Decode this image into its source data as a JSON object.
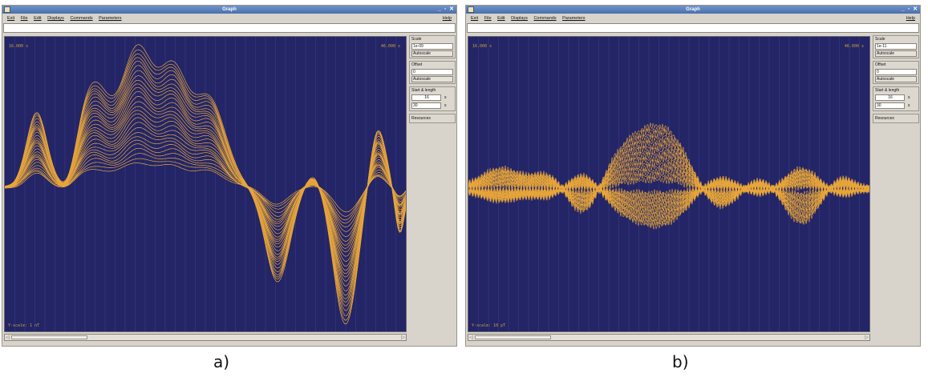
{
  "windows": [
    {
      "title": "Graph",
      "menu": [
        "Exit",
        "File",
        "Edit",
        "Displays",
        "Commands",
        "Parameters"
      ],
      "help": "Help",
      "plot": {
        "time_left": "16.000 s",
        "time_right": "46.000 s",
        "yscale": "Y-scale: 1 nT",
        "background": "#232566",
        "trace_color": "#e8a63a"
      },
      "panel": {
        "scale_label": "Scale",
        "scale_value": "1e-09",
        "autoscale1": "Autoscale",
        "offset_label": "Offset",
        "offset_value": "0",
        "autoscale2": "Autoscale",
        "start_label": "Start & length",
        "start_value": "16",
        "start_unit": "s",
        "length_value": "30",
        "length_unit": "s",
        "resources": "Resources"
      },
      "caption": "a)"
    },
    {
      "title": "Graph",
      "menu": [
        "Exit",
        "File",
        "Edit",
        "Displays",
        "Commands",
        "Parameters"
      ],
      "help": "Help",
      "plot": {
        "time_left": "16.000 s",
        "time_right": "46.000 s",
        "yscale": "Y-scale: 10 pT",
        "background": "#232566",
        "trace_color": "#e8a63a"
      },
      "panel": {
        "scale_label": "Scale",
        "scale_value": "1e-11",
        "autoscale1": "Autoscale",
        "offset_label": "Offset",
        "offset_value": "0",
        "autoscale2": "Autoscale",
        "start_label": "Start & length",
        "start_value": "16",
        "start_unit": "s",
        "length_value": "30",
        "length_unit": "s",
        "resources": "Resources"
      },
      "caption": "b)"
    }
  ]
}
